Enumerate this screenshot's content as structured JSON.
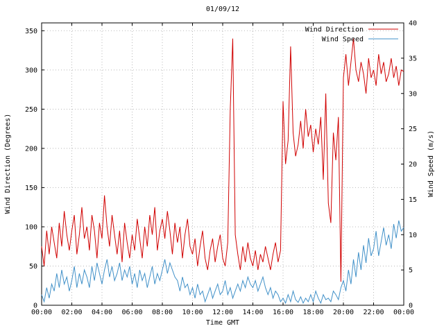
{
  "title": "01/09/12",
  "axes": {
    "x_label": "Time GMT",
    "x_ticks": [
      "00:00",
      "02:00",
      "04:00",
      "06:00",
      "08:00",
      "10:00",
      "12:00",
      "14:00",
      "16:00",
      "18:00",
      "20:00",
      "22:00",
      "00:00"
    ],
    "y_left_label": "Wind Direction (Degrees)",
    "y_left_ticks": [
      0,
      50,
      100,
      150,
      200,
      250,
      300,
      350
    ],
    "y_left_range": [
      0,
      360
    ],
    "y_right_label": "Wind Speed (m/s)",
    "y_right_ticks": [
      0,
      5,
      10,
      15,
      20,
      25,
      30,
      35,
      40
    ],
    "y_right_range": [
      0,
      40
    ]
  },
  "chart_data": {
    "type": "line",
    "title": "01/09/12",
    "xlabel": "Time GMT",
    "x_unit": "minutes from 00:00 GMT",
    "x_step_minutes": 10,
    "x_range_minutes": [
      0,
      1440
    ],
    "grid": true,
    "legend_position": "top-right",
    "series": [
      {
        "name": "Wind Direction",
        "axis": "left",
        "units": "Degrees",
        "ylim": [
          0,
          360
        ],
        "color": "#d00000",
        "values": [
          75,
          50,
          95,
          65,
          100,
          80,
          60,
          105,
          75,
          120,
          90,
          70,
          95,
          115,
          65,
          90,
          125,
          85,
          100,
          70,
          115,
          95,
          60,
          105,
          85,
          140,
          100,
          75,
          115,
          90,
          65,
          95,
          55,
          105,
          80,
          60,
          90,
          70,
          110,
          85,
          60,
          100,
          75,
          115,
          90,
          125,
          70,
          95,
          110,
          85,
          120,
          95,
          65,
          105,
          80,
          100,
          60,
          90,
          110,
          75,
          65,
          85,
          50,
          75,
          95,
          60,
          45,
          70,
          85,
          55,
          75,
          90,
          60,
          50,
          80,
          250,
          340,
          90,
          65,
          45,
          75,
          55,
          80,
          60,
          50,
          70,
          45,
          65,
          55,
          75,
          60,
          45,
          65,
          80,
          55,
          70,
          260,
          180,
          210,
          330,
          220,
          190,
          205,
          235,
          200,
          250,
          215,
          230,
          195,
          225,
          205,
          240,
          160,
          270,
          130,
          105,
          220,
          185,
          240,
          30,
          290,
          320,
          280,
          310,
          340,
          300,
          285,
          310,
          295,
          270,
          315,
          290,
          300,
          280,
          320,
          295,
          310,
          285,
          295,
          315,
          290,
          305,
          280,
          300,
          298
        ]
      },
      {
        "name": "Wind Speed",
        "axis": "right",
        "units": "m/s",
        "ylim": [
          0,
          40
        ],
        "color": "#4090c8",
        "values": [
          1.5,
          0.5,
          2.5,
          1,
          3,
          2,
          4.5,
          2.5,
          5,
          3,
          4,
          2,
          3.5,
          5.5,
          2.5,
          4.5,
          3,
          5,
          4,
          2.5,
          5.5,
          3.5,
          6,
          4.5,
          3,
          5,
          6.5,
          4,
          5.5,
          3.5,
          4.5,
          6,
          3.5,
          5,
          4,
          5.5,
          3,
          4.5,
          2.5,
          5,
          3.5,
          4.5,
          2.5,
          4,
          5.5,
          3,
          4.5,
          3.5,
          5,
          6.5,
          4.5,
          6,
          5,
          4,
          3.5,
          2,
          4,
          2.5,
          3,
          1.5,
          2.5,
          1,
          3,
          1.5,
          2,
          0.5,
          1.5,
          2.5,
          1,
          2,
          3,
          1.5,
          2,
          3.5,
          1.5,
          2.5,
          1,
          2,
          3,
          2,
          3.5,
          2.5,
          4,
          3,
          2.5,
          3.5,
          2,
          3,
          4,
          2.5,
          1.5,
          2.5,
          1,
          2,
          1.5,
          0.5,
          1,
          0.3,
          1.5,
          0.5,
          2,
          0.8,
          0.4,
          1.2,
          0.3,
          1,
          0.5,
          1.5,
          0.5,
          2,
          1,
          0.3,
          1.5,
          0.8,
          1,
          0.5,
          2,
          1.5,
          0.8,
          2.5,
          3.5,
          2,
          5,
          3,
          6.5,
          4,
          7.5,
          5,
          8.5,
          6,
          9.5,
          7,
          8,
          10.5,
          7,
          9,
          11,
          8.5,
          10,
          8,
          11.5,
          9.5,
          12,
          10.5,
          11
        ]
      }
    ]
  }
}
